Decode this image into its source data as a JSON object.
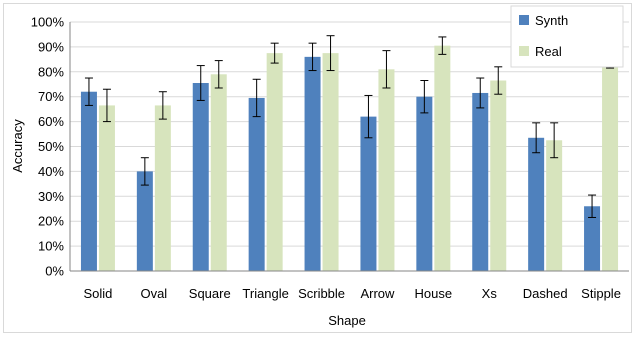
{
  "chart_data": {
    "type": "bar",
    "xlabel": "Shape",
    "ylabel": "Accuracy",
    "ylim": [
      0,
      100
    ],
    "y_ticks": [
      "0%",
      "10%",
      "20%",
      "30%",
      "40%",
      "50%",
      "60%",
      "70%",
      "80%",
      "90%",
      "100%"
    ],
    "grid": true,
    "legend_position": "top-right",
    "categories": [
      "Solid",
      "Oval",
      "Square",
      "Triangle",
      "Scribble",
      "Arrow",
      "House",
      "Xs",
      "Dashed",
      "Stipple"
    ],
    "series": [
      {
        "name": "Synth",
        "color": "#4f81bd",
        "values": [
          72,
          40,
          75.5,
          69.5,
          86,
          62,
          70,
          71.5,
          53.5,
          26
        ],
        "error": [
          5.5,
          5.5,
          7,
          7.5,
          5.5,
          8.5,
          6.5,
          6,
          6,
          4.5
        ]
      },
      {
        "name": "Real",
        "color": "#d7e4bd",
        "values": [
          66.5,
          66.5,
          79,
          87.5,
          87.5,
          81,
          90.5,
          76.5,
          52.5,
          87.5
        ],
        "error": [
          6.5,
          5.5,
          5.5,
          4,
          7,
          7.5,
          3.5,
          5.5,
          7,
          6
        ]
      }
    ]
  }
}
